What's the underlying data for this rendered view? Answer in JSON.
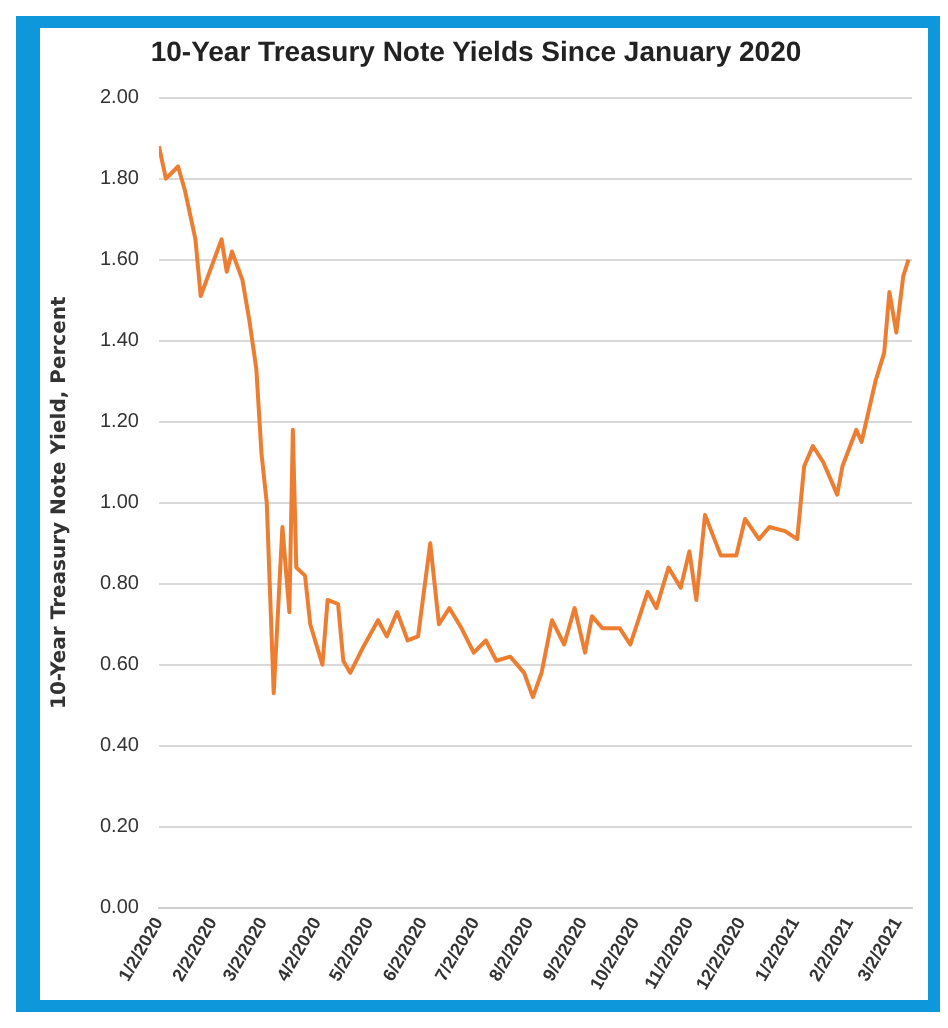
{
  "chart_data": {
    "type": "line",
    "title": "10-Year Treasury Note Yields Since January 2020",
    "ylabel": "10-Year Treasury Note Yield, Percent",
    "x": [
      "2020-01-02",
      "2020-01-06",
      "2020-01-13",
      "2020-01-17",
      "2020-01-23",
      "2020-01-26",
      "2020-02-07",
      "2020-02-10",
      "2020-02-13",
      "2020-02-19",
      "2020-02-23",
      "2020-02-27",
      "2020-03-01",
      "2020-03-04",
      "2020-03-08",
      "2020-03-13",
      "2020-03-17",
      "2020-03-19",
      "2020-03-21",
      "2020-03-26",
      "2020-03-29",
      "2020-04-05",
      "2020-04-08",
      "2020-04-14",
      "2020-04-17",
      "2020-04-21",
      "2020-04-28",
      "2020-05-07",
      "2020-05-12",
      "2020-05-18",
      "2020-05-24",
      "2020-05-30",
      "2020-06-06",
      "2020-06-11",
      "2020-06-17",
      "2020-06-24",
      "2020-07-01",
      "2020-07-08",
      "2020-07-14",
      "2020-07-22",
      "2020-07-30",
      "2020-08-04",
      "2020-08-09",
      "2020-08-15",
      "2020-08-22",
      "2020-08-28",
      "2020-09-03",
      "2020-09-07",
      "2020-09-13",
      "2020-09-23",
      "2020-09-29",
      "2020-10-09",
      "2020-10-14",
      "2020-10-21",
      "2020-10-28",
      "2020-11-02",
      "2020-11-06",
      "2020-11-11",
      "2020-11-20",
      "2020-11-29",
      "2020-12-04",
      "2020-12-12",
      "2020-12-18",
      "2020-12-27",
      "2021-01-03",
      "2021-01-07",
      "2021-01-12",
      "2021-01-18",
      "2021-01-26",
      "2021-01-29",
      "2021-02-06",
      "2021-02-09",
      "2021-02-17",
      "2021-02-22",
      "2021-02-25",
      "2021-03-01",
      "2021-03-05",
      "2021-03-08"
    ],
    "series": [
      {
        "color": "#ed7d31",
        "values": [
          1.88,
          1.8,
          1.83,
          1.77,
          1.65,
          1.51,
          1.65,
          1.57,
          1.62,
          1.55,
          1.45,
          1.33,
          1.12,
          1.0,
          0.53,
          0.94,
          0.73,
          1.18,
          0.84,
          0.82,
          0.7,
          0.6,
          0.76,
          0.75,
          0.61,
          0.58,
          0.64,
          0.71,
          0.67,
          0.73,
          0.66,
          0.67,
          0.9,
          0.7,
          0.74,
          0.69,
          0.63,
          0.66,
          0.61,
          0.62,
          0.58,
          0.52,
          0.58,
          0.71,
          0.65,
          0.74,
          0.63,
          0.72,
          0.69,
          0.69,
          0.65,
          0.78,
          0.74,
          0.84,
          0.79,
          0.88,
          0.76,
          0.97,
          0.87,
          0.87,
          0.96,
          0.91,
          0.94,
          0.93,
          0.91,
          1.09,
          1.14,
          1.1,
          1.02,
          1.09,
          1.18,
          1.15,
          1.3,
          1.37,
          1.52,
          1.42,
          1.56,
          1.6
        ]
      }
    ],
    "xlim": [
      "2020-01-02",
      "2021-03-10"
    ],
    "xticks": [
      {
        "value": "2020-01-02",
        "label": "1/2/2020"
      },
      {
        "value": "2020-02-02",
        "label": "2/2/2020"
      },
      {
        "value": "2020-03-02",
        "label": "3/2/2020"
      },
      {
        "value": "2020-04-02",
        "label": "4/2/2020"
      },
      {
        "value": "2020-05-02",
        "label": "5/2/2020"
      },
      {
        "value": "2020-06-02",
        "label": "6/2/2020"
      },
      {
        "value": "2020-07-02",
        "label": "7/2/2020"
      },
      {
        "value": "2020-08-02",
        "label": "8/2/2020"
      },
      {
        "value": "2020-09-02",
        "label": "9/2/2020"
      },
      {
        "value": "2020-10-02",
        "label": "10/2/2020"
      },
      {
        "value": "2020-11-02",
        "label": "11/2/2020"
      },
      {
        "value": "2020-12-02",
        "label": "12/2/2020"
      },
      {
        "value": "2021-01-02",
        "label": "1/2/2021"
      },
      {
        "value": "2021-02-02",
        "label": "2/2/2021"
      },
      {
        "value": "2021-03-02",
        "label": "3/2/2021"
      }
    ],
    "ylim": [
      0,
      2
    ],
    "yticks": [
      {
        "value": 0,
        "label": "0.00"
      },
      {
        "value": 0.2,
        "label": "0.20"
      },
      {
        "value": 0.4,
        "label": "0.40"
      },
      {
        "value": 0.6,
        "label": "0.60"
      },
      {
        "value": 0.8,
        "label": "0.80"
      },
      {
        "value": 1,
        "label": "1.00"
      },
      {
        "value": 1.2,
        "label": "1.20"
      },
      {
        "value": 1.4,
        "label": "1.40"
      },
      {
        "value": 1.6,
        "label": "1.60"
      },
      {
        "value": 1.8,
        "label": "1.80"
      },
      {
        "value": 2,
        "label": "2.00"
      }
    ],
    "grid": "y",
    "legend": false,
    "marker": "none",
    "line_style": "solid"
  }
}
